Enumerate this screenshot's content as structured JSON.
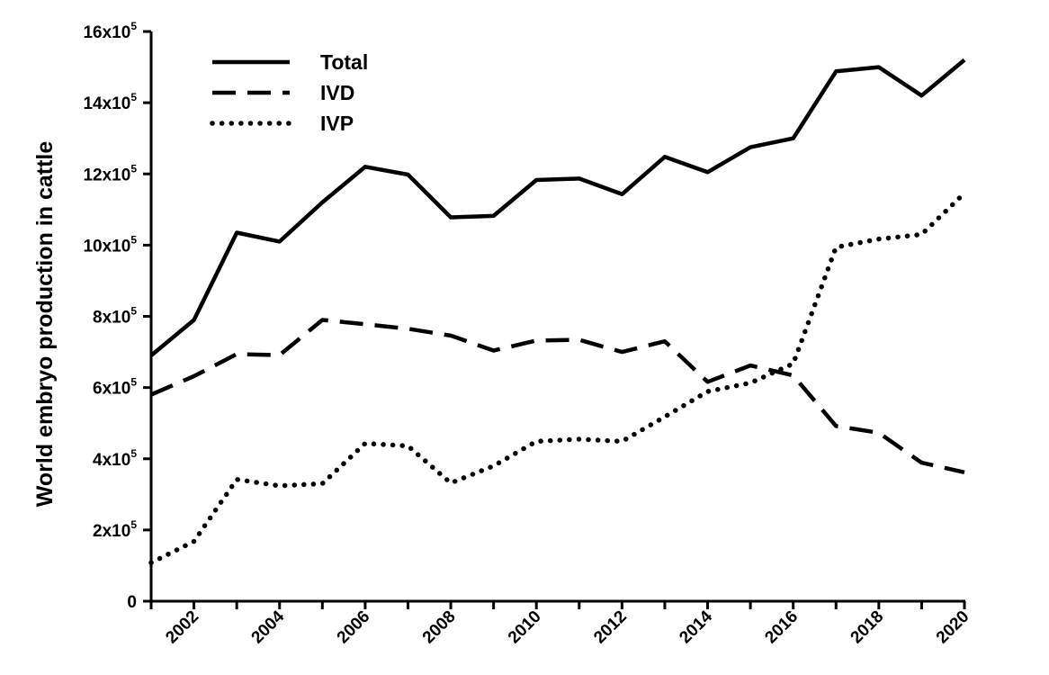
{
  "chart_data": {
    "type": "line",
    "title": "",
    "xlabel": "",
    "ylabel": "World embryo production in cattle",
    "xlim": [
      2001,
      2020
    ],
    "ylim": [
      0,
      1600000
    ],
    "x": [
      2001,
      2002,
      2003,
      2004,
      2005,
      2006,
      2007,
      2008,
      2009,
      2010,
      2011,
      2012,
      2013,
      2014,
      2015,
      2016,
      2017,
      2018,
      2019,
      2020
    ],
    "x_tick_labels": [
      "2002",
      "2004",
      "2006",
      "2008",
      "2010",
      "2012",
      "2014",
      "2016",
      "2018",
      "2020"
    ],
    "y_tick_labels": [
      {
        "value": 0,
        "base": "0",
        "exp": ""
      },
      {
        "value": 200000,
        "base": "2x10",
        "exp": "5"
      },
      {
        "value": 400000,
        "base": "4x10",
        "exp": "5"
      },
      {
        "value": 600000,
        "base": "6x10",
        "exp": "5"
      },
      {
        "value": 800000,
        "base": "8x10",
        "exp": "5"
      },
      {
        "value": 1000000,
        "base": "10x10",
        "exp": "5"
      },
      {
        "value": 1200000,
        "base": "12x10",
        "exp": "5"
      },
      {
        "value": 1400000,
        "base": "14x10",
        "exp": "5"
      },
      {
        "value": 1600000,
        "base": "16x10",
        "exp": "5"
      }
    ],
    "legend_position": "top-left",
    "grid": false,
    "series": [
      {
        "name": "Total",
        "style": "solid",
        "color": "#000000",
        "values": [
          690000,
          790000,
          1035000,
          1010000,
          1120000,
          1220000,
          1198000,
          1078000,
          1082000,
          1183000,
          1187000,
          1143000,
          1248000,
          1205000,
          1275000,
          1300000,
          1488000,
          1500000,
          1420000,
          1520000
        ]
      },
      {
        "name": "IVD",
        "style": "dashed",
        "color": "#000000",
        "values": [
          580000,
          632000,
          694000,
          691000,
          790000,
          778000,
          765000,
          746000,
          704000,
          732000,
          734000,
          700000,
          730000,
          616000,
          662000,
          634000,
          492000,
          473000,
          389000,
          362000
        ]
      },
      {
        "name": "IVP",
        "style": "dotted",
        "color": "#000000",
        "values": [
          108000,
          168000,
          342000,
          324000,
          330000,
          443000,
          436000,
          332000,
          380000,
          449000,
          455000,
          449000,
          518000,
          589000,
          613000,
          667000,
          994000,
          1017000,
          1030000,
          1146000
        ]
      }
    ]
  }
}
